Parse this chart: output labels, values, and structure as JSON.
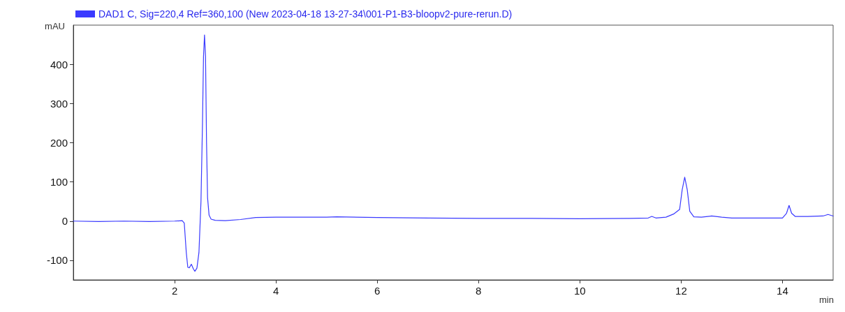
{
  "chart_data": {
    "type": "line",
    "ylabel": "mAU",
    "xlabel": "min",
    "legend": "top left",
    "grid": false,
    "marker": "none",
    "line_style": "solid",
    "xlim": [
      0,
      15
    ],
    "xticks": [
      2,
      4,
      6,
      8,
      10,
      12,
      14
    ],
    "ylim": [
      -150,
      500
    ],
    "yticks": [
      -100,
      0,
      100,
      200,
      300,
      400
    ],
    "series": [
      {
        "name": "DAD1 C, Sig=220,4 Ref=360,100 (New 2023-04-18 13-27-34\\001-P1-B3-bloopv2-pure-rerun.D)",
        "color": "#3a3aff",
        "x": [
          0,
          0.5,
          1,
          1.5,
          2,
          2.15,
          2.19,
          2.23,
          2.26,
          2.29,
          2.33,
          2.37,
          2.4,
          2.44,
          2.48,
          2.52,
          2.55,
          2.57,
          2.59,
          2.61,
          2.63,
          2.65,
          2.68,
          2.72,
          2.8,
          3,
          3.3,
          3.6,
          4,
          5,
          5.2,
          6,
          7,
          8,
          9,
          10,
          11,
          11.35,
          11.42,
          11.5,
          11.7,
          11.85,
          11.97,
          12.02,
          12.07,
          12.12,
          12.17,
          12.25,
          12.4,
          12.6,
          12.8,
          13,
          14,
          14.08,
          14.13,
          14.18,
          14.25,
          14.5,
          14.8,
          14.9,
          15
        ],
        "values": [
          0,
          -1,
          0,
          -1,
          0,
          1,
          -5,
          -80,
          -118,
          -119,
          -110,
          -122,
          -128,
          -120,
          -80,
          50,
          250,
          420,
          475,
          420,
          200,
          60,
          15,
          5,
          2,
          1,
          4,
          9,
          10,
          10,
          11,
          9,
          8,
          7,
          7,
          6,
          7,
          8,
          12,
          8,
          10,
          18,
          30,
          80,
          112,
          80,
          25,
          11,
          10,
          13,
          10,
          8,
          8,
          20,
          40,
          20,
          12,
          12,
          13,
          17,
          13
        ]
      }
    ]
  }
}
